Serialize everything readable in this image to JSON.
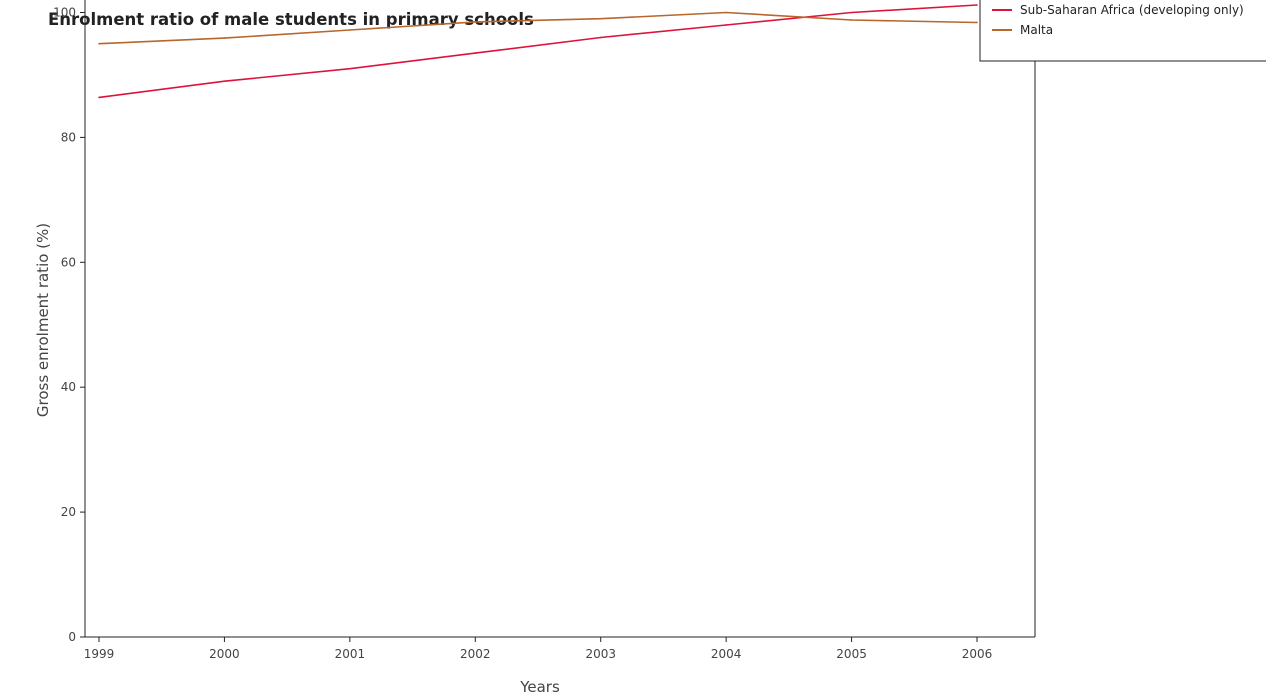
{
  "chart_data": {
    "type": "line",
    "title": "Enrolment ratio of male students in primary schools",
    "xlabel": "Years",
    "ylabel": "Gross enrolment ratio (%)",
    "x": [
      "1999",
      "2000",
      "2001",
      "2002",
      "2003",
      "2004",
      "2005",
      "2006"
    ],
    "ylim": [
      0,
      102
    ],
    "yticks": [
      "0",
      "20",
      "40",
      "60",
      "80",
      "100"
    ],
    "grid": false,
    "legend_position": "outside-top-right",
    "series": [
      {
        "name": "Sub-Saharan Africa (developing only)",
        "color": "#dc143c",
        "values": [
          86.4,
          89.0,
          91.0,
          93.5,
          96.0,
          98.0,
          100.0,
          101.2
        ]
      },
      {
        "name": "Malta",
        "color": "#b8662a",
        "values": [
          95.0,
          95.9,
          97.2,
          98.5,
          99.0,
          100.0,
          98.8,
          98.4
        ]
      }
    ]
  }
}
